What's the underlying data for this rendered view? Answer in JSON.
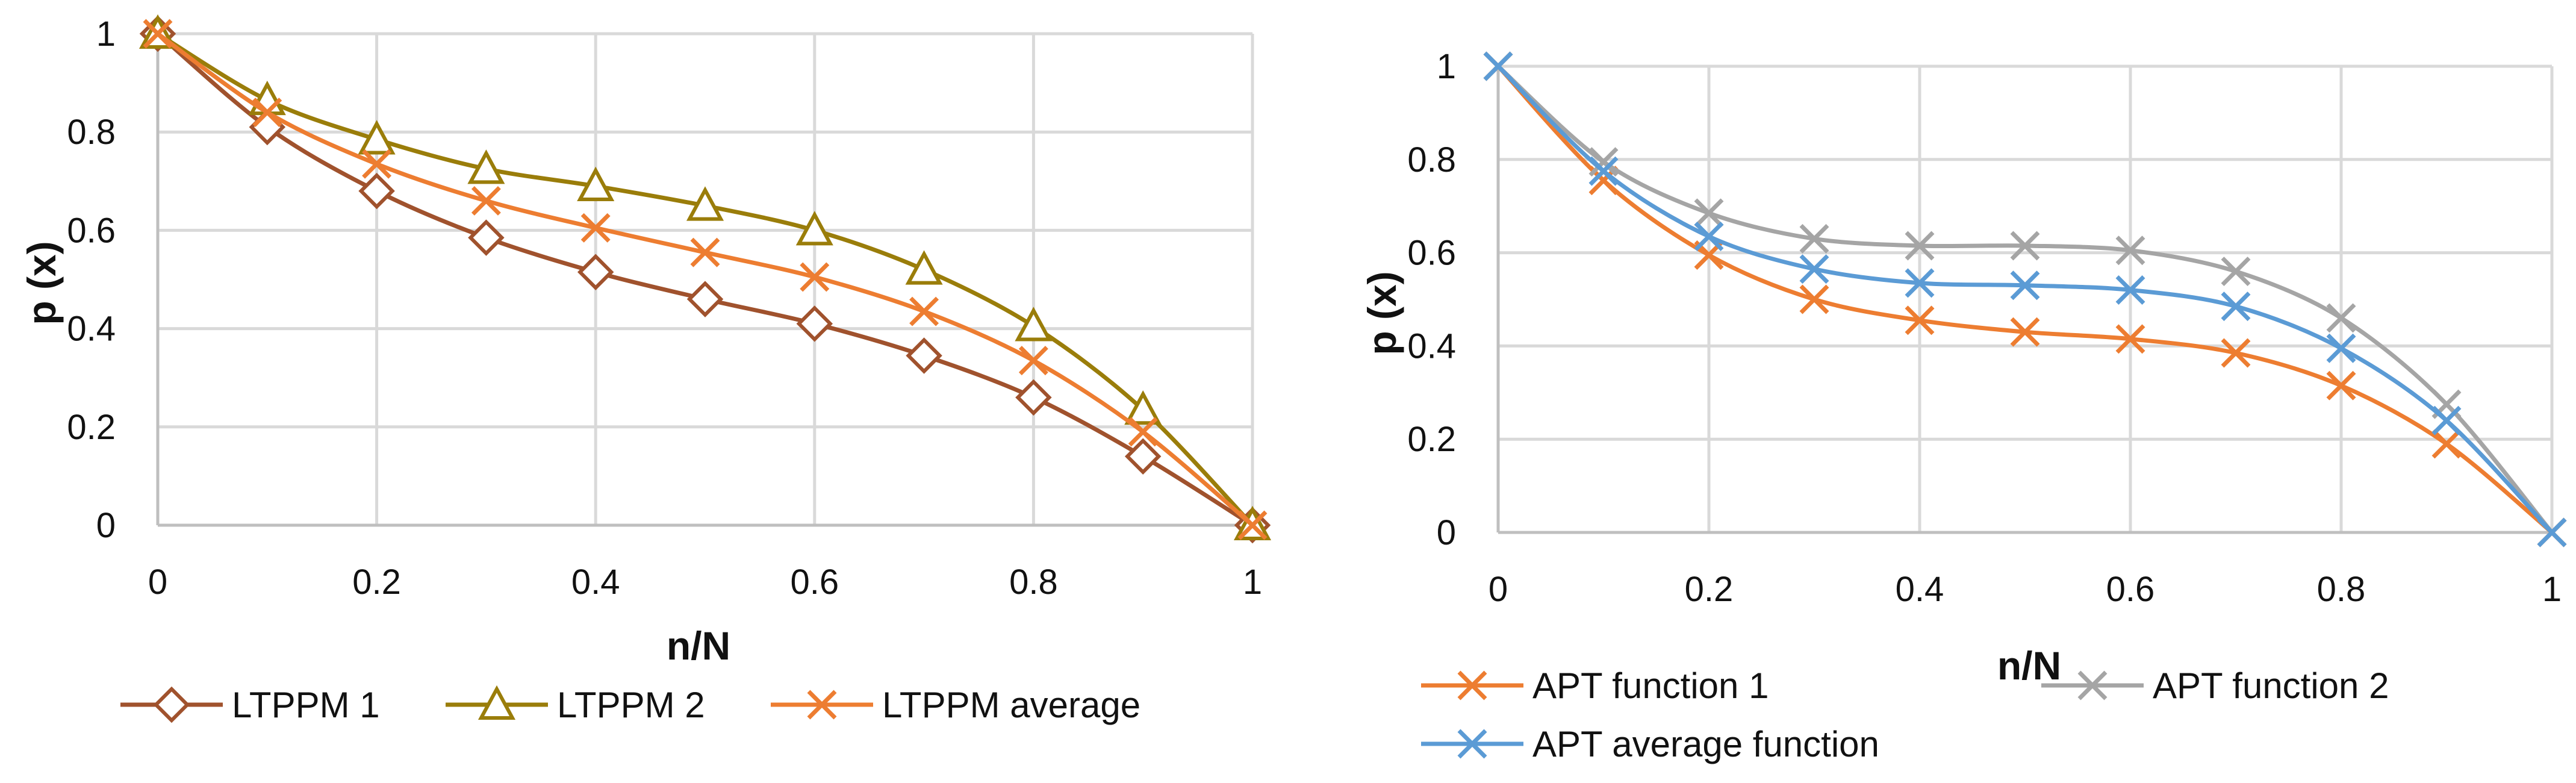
{
  "chart_data": [
    {
      "type": "line",
      "title": "",
      "xlabel": "n/N",
      "ylabel": "p (x)",
      "xlim": [
        0,
        1
      ],
      "ylim": [
        0,
        1
      ],
      "x_ticks": [
        "0",
        "0.2",
        "0.4",
        "0.6",
        "0.8",
        "1"
      ],
      "y_ticks": [
        "0",
        "0.2",
        "0.4",
        "0.6",
        "0.8",
        "1"
      ],
      "grid": true,
      "legend": "bottom",
      "x": [
        0,
        0.1,
        0.2,
        0.3,
        0.4,
        0.5,
        0.6,
        0.7,
        0.8,
        0.9,
        1.0
      ],
      "series": [
        {
          "name": "LTPPM 1",
          "color": "#a0522d",
          "marker": "diamond",
          "values": [
            1.0,
            0.81,
            0.68,
            0.585,
            0.515,
            0.46,
            0.41,
            0.345,
            0.26,
            0.14,
            0.0
          ]
        },
        {
          "name": "LTPPM 2",
          "color": "#9a7d0a",
          "marker": "triangle",
          "values": [
            1.0,
            0.865,
            0.785,
            0.725,
            0.69,
            0.65,
            0.6,
            0.52,
            0.405,
            0.235,
            0.0
          ]
        },
        {
          "name": "LTPPM average",
          "color": "#ed7d31",
          "marker": "x",
          "values": [
            1.0,
            0.84,
            0.735,
            0.66,
            0.605,
            0.555,
            0.505,
            0.435,
            0.335,
            0.19,
            0.0
          ]
        }
      ]
    },
    {
      "type": "line",
      "title": "",
      "xlabel": "n/N",
      "ylabel": "p (x)",
      "xlim": [
        0,
        1
      ],
      "ylim": [
        0,
        1
      ],
      "x_ticks": [
        "0",
        "0.2",
        "0.4",
        "0.6",
        "0.8",
        "1"
      ],
      "y_ticks": [
        "0",
        "0.2",
        "0.4",
        "0.6",
        "0.8",
        "1"
      ],
      "grid": true,
      "legend": "bottom",
      "x": [
        0,
        0.1,
        0.2,
        0.3,
        0.4,
        0.5,
        0.6,
        0.7,
        0.8,
        0.9,
        1.0
      ],
      "series": [
        {
          "name": "APT function 1",
          "color": "#ed7d31",
          "marker": "x",
          "values": [
            1.0,
            0.755,
            0.595,
            0.5,
            0.455,
            0.43,
            0.415,
            0.385,
            0.315,
            0.19,
            0.0
          ]
        },
        {
          "name": "APT function 2",
          "color": "#a5a5a5",
          "marker": "x",
          "values": [
            1.0,
            0.795,
            0.685,
            0.63,
            0.615,
            0.615,
            0.605,
            0.56,
            0.46,
            0.275,
            0.0
          ]
        },
        {
          "name": "APT average function",
          "color": "#5b9bd5",
          "marker": "x",
          "values": [
            1.0,
            0.775,
            0.635,
            0.565,
            0.535,
            0.53,
            0.52,
            0.485,
            0.395,
            0.24,
            0.0
          ]
        }
      ]
    }
  ]
}
